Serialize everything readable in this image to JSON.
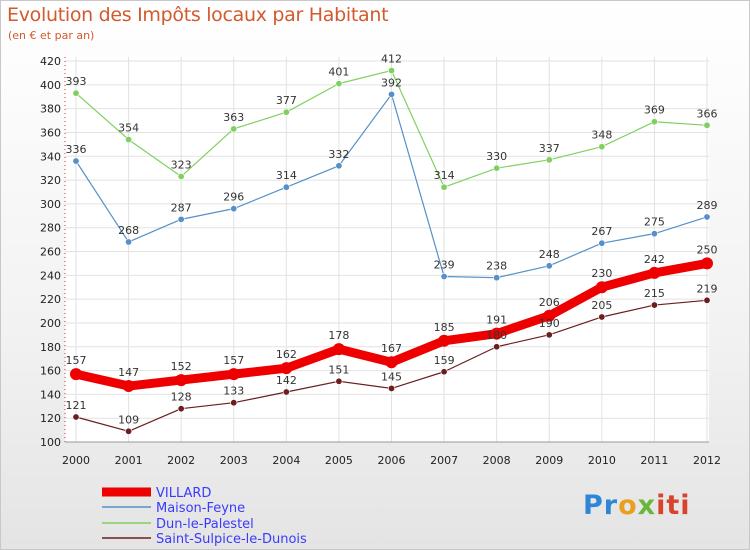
{
  "chart_data": {
    "type": "line",
    "title": "Evolution des Impôts locaux par Habitant",
    "subtitle": "(en € et par an)",
    "x": [
      "2000",
      "2001",
      "2002",
      "2003",
      "2004",
      "2005",
      "2006",
      "2007",
      "2008",
      "2009",
      "2010",
      "2011",
      "2012"
    ],
    "ylim": [
      100,
      420
    ],
    "yticks": [
      100,
      120,
      140,
      160,
      180,
      200,
      220,
      240,
      260,
      280,
      300,
      320,
      340,
      360,
      380,
      400,
      420
    ],
    "series": [
      {
        "name": "VILLARD",
        "color": "#ee0000",
        "values": [
          157,
          147,
          152,
          157,
          162,
          178,
          167,
          185,
          191,
          206,
          230,
          242,
          250
        ]
      },
      {
        "name": "Maison-Feyne",
        "color": "#5590c8",
        "values": [
          336,
          268,
          287,
          296,
          314,
          332,
          392,
          239,
          238,
          248,
          267,
          275,
          289
        ]
      },
      {
        "name": "Dun-le-Palestel",
        "color": "#80d060",
        "values": [
          393,
          354,
          323,
          363,
          377,
          401,
          412,
          314,
          330,
          337,
          348,
          369,
          366
        ]
      },
      {
        "name": "Saint-Sulpice-le-Dunois",
        "color": "#6b1e1e",
        "values": [
          121,
          109,
          128,
          133,
          142,
          151,
          145,
          159,
          180,
          190,
          205,
          215,
          219
        ]
      }
    ]
  },
  "logo": {
    "p1": "Pr",
    "p2": "o",
    "p3": "x",
    "p4": "iti"
  }
}
